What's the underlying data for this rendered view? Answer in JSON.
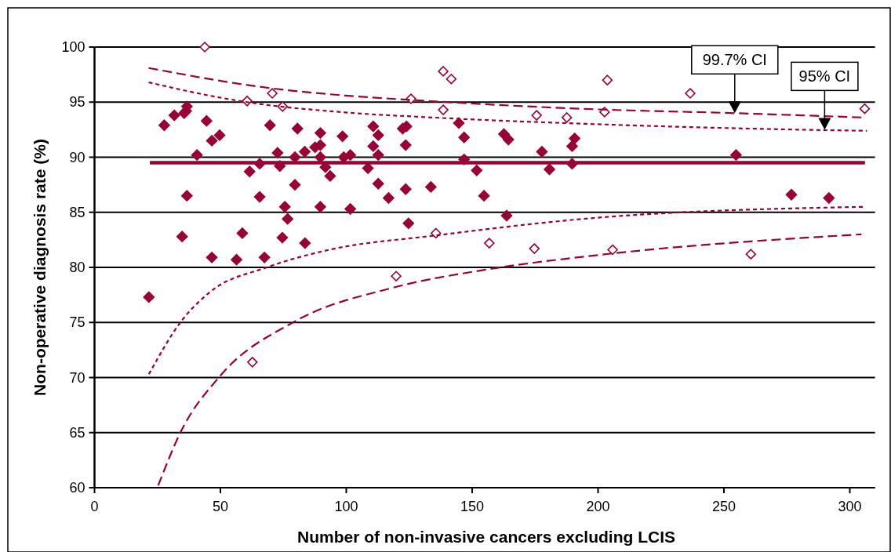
{
  "chart_data": {
    "type": "scatter",
    "xlabel": "Number of non-invasive cancers excluding LCIS",
    "ylabel": "Non-operative diagnosis rate (%)",
    "xlim": [
      0,
      310
    ],
    "xticks": [
      0,
      50,
      100,
      150,
      200,
      250,
      300
    ],
    "ylim": [
      60,
      100
    ],
    "yticks": [
      60,
      65,
      70,
      75,
      80,
      85,
      90,
      95,
      100
    ],
    "grid": "y",
    "annotations": [
      {
        "text": "99.7% CI",
        "x": 254.3,
        "y": 94.0
      },
      {
        "text": "95% CI",
        "x": 290,
        "y": 92.5
      }
    ],
    "series": [
      {
        "marker": "diamond",
        "color": "#990033",
        "x": [
          27.7,
          31.7,
          35.6,
          36.4,
          36.7,
          44.5,
          49.7,
          46.6,
          40.7,
          61.6,
          65.6,
          69.7,
          72.7,
          73.6,
          80.6,
          79.6,
          83.5,
          87.6,
          89.7,
          89.7,
          89.7,
          91.7,
          93.6,
          98.5,
          99,
          36.7,
          65.6,
          79.6,
          75.6,
          89.7,
          76.7,
          34.8,
          58.7,
          74.6,
          83.6,
          46.6,
          56.4,
          67.5,
          21.6,
          101.6,
          110.7,
          112.7,
          110.7,
          112.7,
          108.6,
          112.7,
          116.8,
          101.6,
          122.4,
          123.9,
          123.6,
          123.6,
          124.7,
          133.6,
          144.7,
          146.8,
          146.8,
          151.8,
          154.7,
          162.6,
          164.4,
          163.7,
          177.7,
          180.7,
          189.7,
          190.7,
          189.7,
          254.8,
          276.8,
          291.7
        ],
        "values": [
          92.9,
          93.8,
          94.0,
          94.2,
          94.6,
          93.3,
          92.0,
          91.5,
          90.2,
          88.7,
          89.4,
          92.9,
          90.4,
          89.2,
          92.6,
          90.0,
          90.5,
          90.9,
          91.1,
          92.2,
          90.0,
          89.1,
          88.3,
          91.9,
          90.0,
          86.5,
          86.4,
          87.5,
          85.5,
          85.5,
          84.4,
          82.8,
          83.1,
          82.7,
          82.2,
          80.9,
          80.7,
          80.9,
          77.3,
          90.2,
          92.8,
          92.0,
          91.0,
          90.2,
          89.0,
          87.6,
          86.3,
          85.3,
          92.6,
          92.8,
          91.1,
          87.1,
          84.0,
          87.3,
          93.1,
          91.8,
          89.8,
          88.8,
          86.5,
          92.1,
          91.6,
          84.7,
          90.5,
          88.9,
          91.0,
          91.7,
          89.4,
          90.2,
          86.6,
          86.3
        ]
      },
      {
        "marker": "diamond",
        "color": "#990033",
        "x": [
          43.8,
          60.6,
          70.6,
          74.7,
          62.7,
          138.5,
          141.7,
          125.7,
          138.5,
          175.6,
          187.6,
          135.6,
          156.8,
          174.7,
          119.8,
          203.7,
          236.6,
          202.6,
          305.9,
          205.8,
          260.7
        ],
        "values": [
          100,
          95.1,
          95.8,
          94.6,
          71.4,
          97.8,
          97.1,
          95.3,
          94.3,
          93.8,
          93.6,
          83.1,
          82.2,
          81.7,
          79.2,
          97.0,
          95.8,
          94.1,
          94.4,
          81.6,
          81.2
        ]
      },
      {
        "type": "line",
        "color": "#990033",
        "line_style": "solid",
        "x": [
          22,
          306
        ],
        "values": [
          89.5,
          89.5
        ]
      },
      {
        "type": "line",
        "color": "#990033",
        "line_style": "dashed",
        "x": [
          21.5,
          70.5,
          99.5,
          125.7,
          199.2,
          254.3,
          305.9
        ],
        "values": [
          98.1,
          96.25,
          95.6,
          95.2,
          94.35,
          94.0,
          93.6
        ]
      },
      {
        "type": "line",
        "color": "#990033",
        "line_style": "dotted",
        "x": [
          21.5,
          45.5,
          60.6,
          99.5,
          134.8,
          199.2,
          290,
          306.8
        ],
        "values": [
          96.8,
          95.6,
          95.0,
          94.07,
          93.6,
          93.0,
          92.46,
          92.4
        ]
      },
      {
        "type": "line",
        "color": "#990033",
        "line_style": "dotted",
        "x": [
          21.6,
          34.1,
          45.5,
          68.4,
          93.3,
          135.6,
          199.2,
          306.2
        ],
        "values": [
          70.3,
          75.0,
          77.7,
          80.0,
          81.6,
          82.9,
          84.5,
          85.5
        ]
      },
      {
        "type": "line",
        "color": "#990033",
        "line_style": "dashed",
        "x": [
          25.3,
          34.1,
          49.7,
          78.8,
          119.3,
          155.6,
          199.2,
          304.6
        ],
        "values": [
          60.2,
          65.0,
          70.1,
          75.0,
          78.2,
          79.8,
          81.1,
          83.0
        ]
      }
    ]
  }
}
